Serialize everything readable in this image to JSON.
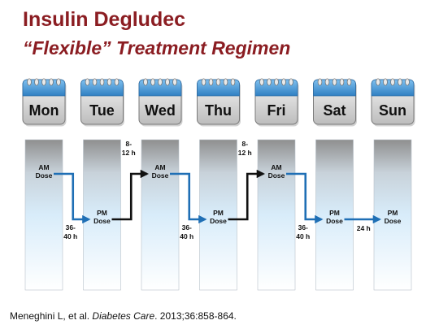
{
  "slide": {
    "title": "Insulin Degludec",
    "subtitle": "“Flexible” Treatment Regimen"
  },
  "days": [
    "Mon",
    "Tue",
    "Wed",
    "Thu",
    "Fri",
    "Sat",
    "Sun"
  ],
  "doses": [
    {
      "day": "Mon",
      "label": [
        "AM",
        "Dose"
      ],
      "time": "AM"
    },
    {
      "day": "Tue",
      "label": [
        "PM",
        "Dose"
      ],
      "time": "PM"
    },
    {
      "day": "Wed",
      "label": [
        "AM",
        "Dose"
      ],
      "time": "AM"
    },
    {
      "day": "Thu",
      "label": [
        "PM",
        "Dose"
      ],
      "time": "PM"
    },
    {
      "day": "Fri",
      "label": [
        "AM",
        "Dose"
      ],
      "time": "AM"
    },
    {
      "day": "Sat",
      "label": [
        "PM",
        "Dose"
      ],
      "time": "PM"
    },
    {
      "day": "Sun",
      "label": [
        "PM",
        "Dose"
      ],
      "time": "PM"
    }
  ],
  "intervals": [
    {
      "from": "Mon",
      "to": "Tue",
      "label": [
        "36-",
        "40 h"
      ],
      "color": "#1f6fb5"
    },
    {
      "from": "Tue",
      "to": "Wed",
      "label": [
        "8-",
        "12 h"
      ],
      "color": "#111111"
    },
    {
      "from": "Wed",
      "to": "Thu",
      "label": [
        "36-",
        "40 h"
      ],
      "color": "#1f6fb5"
    },
    {
      "from": "Thu",
      "to": "Fri",
      "label": [
        "8-",
        "12 h"
      ],
      "color": "#111111"
    },
    {
      "from": "Fri",
      "to": "Sat",
      "label": [
        "36-",
        "40 h"
      ],
      "color": "#1f6fb5"
    },
    {
      "from": "Sat",
      "to": "Sun",
      "label": [
        "24 h"
      ],
      "color": "#1f6fb5"
    }
  ],
  "colors": {
    "title": "#8b1d22",
    "calendar_blue": "#4a9ad6",
    "calendar_gray": "#d0d0d0",
    "long_interval_arrow": "#1f6fb5",
    "short_interval_arrow": "#111111"
  },
  "citation": {
    "authors": "Meneghini L, et al. ",
    "journal": "Diabetes Care",
    "details": ". 2013;36:858-864."
  }
}
